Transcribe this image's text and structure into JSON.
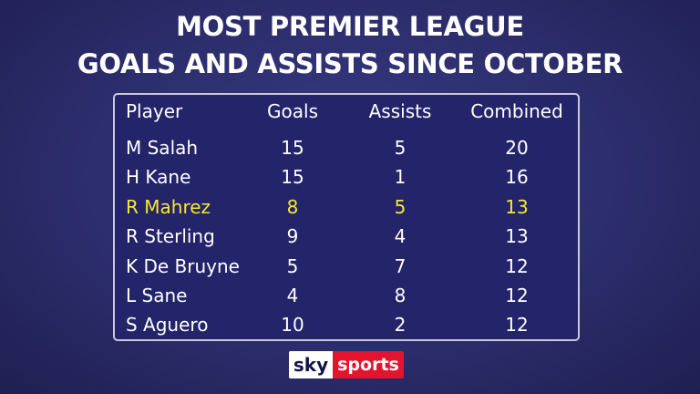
{
  "title": {
    "line1": "MOST PREMIER LEAGUE",
    "line2": "GOALS AND ASSISTS SINCE OCTOBER"
  },
  "table": {
    "headers": {
      "player": "Player",
      "goals": "Goals",
      "assists": "Assists",
      "combined": "Combined"
    },
    "rows": [
      {
        "player": "M Salah",
        "goals": "15",
        "assists": "5",
        "combined": "20"
      },
      {
        "player": "H Kane",
        "goals": "15",
        "assists": "1",
        "combined": "16"
      },
      {
        "player": "R Mahrez",
        "goals": "8",
        "assists": "5",
        "combined": "13",
        "highlight": true
      },
      {
        "player": "R Sterling",
        "goals": "9",
        "assists": "4",
        "combined": "13"
      },
      {
        "player": "K De Bruyne",
        "goals": "5",
        "assists": "7",
        "combined": "12"
      },
      {
        "player": "L Sane",
        "goals": "4",
        "assists": "8",
        "combined": "12"
      },
      {
        "player": "S Aguero",
        "goals": "10",
        "assists": "2",
        "combined": "12"
      }
    ]
  },
  "logo": {
    "sky": "sky",
    "sports": "sports"
  },
  "colors": {
    "background": "#2c2d6c",
    "highlight": "#f5e930",
    "logo_red": "#e3142c"
  }
}
